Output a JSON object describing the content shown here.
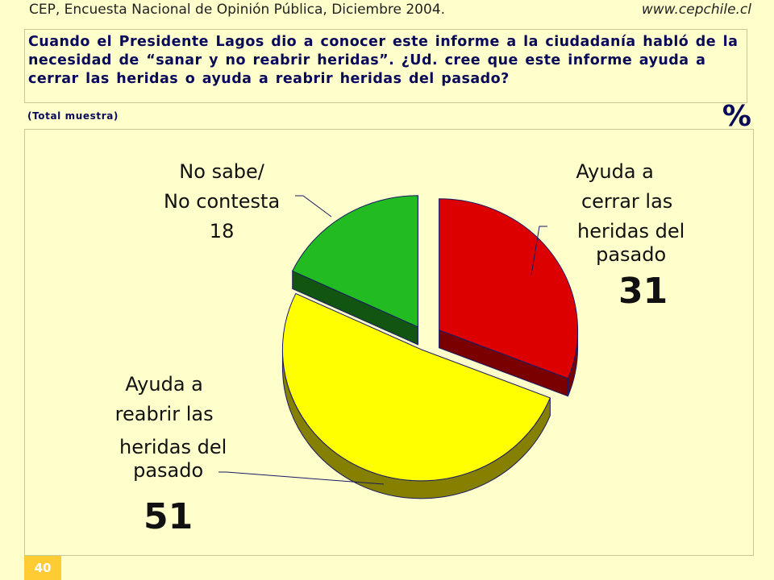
{
  "header": {
    "source": "CEP, Encuesta Nacional de Opinión Pública, Diciembre 2004.",
    "website": "www.cepchile.cl"
  },
  "question": "Cuando el Presidente Lagos dio a conocer este informe a la ciudadanía habló de la necesidad de “sanar y no reabrir heridas”. ¿Ud. cree que este informe ayuda a cerrar las heridas o ayuda a reabrir heridas del pasado?",
  "subtitle": "(Total muestra)",
  "unit": "%",
  "page_number": "40",
  "chart_data": {
    "type": "pie",
    "style": "3d-exploded",
    "slices": [
      {
        "label_lines": [
          "Ayuda a",
          "cerrar las",
          "heridas del",
          "pasado"
        ],
        "value": 31,
        "color": "#dd0000",
        "side_color": "#7a0000"
      },
      {
        "label_lines": [
          "Ayuda a",
          "reabrir las",
          "heridas del",
          "pasado"
        ],
        "value": 51,
        "color": "#ffff00",
        "side_color": "#858000"
      },
      {
        "label_lines": [
          "No sabe/",
          "No contesta"
        ],
        "value": 18,
        "color": "#22bb22",
        "side_color": "#115511"
      }
    ]
  }
}
